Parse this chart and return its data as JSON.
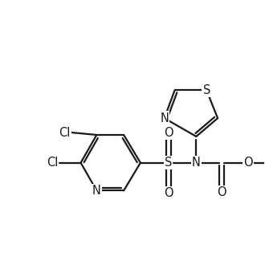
{
  "bg_color": "#ffffff",
  "line_color": "#1a1a1a",
  "line_width": 1.6,
  "font_size": 10.5,
  "figsize": [
    3.3,
    3.3
  ],
  "dpi": 100,
  "xlim": [
    0,
    10
  ],
  "ylim": [
    0,
    10
  ]
}
